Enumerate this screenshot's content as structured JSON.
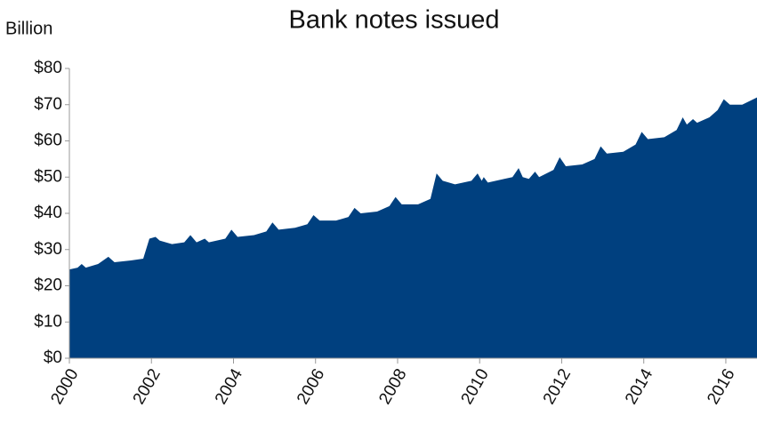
{
  "chart_data": {
    "type": "area",
    "title": "Bank notes issued",
    "y_label": "Billion",
    "color": "#00407f",
    "x": [
      2000.0,
      2000.2,
      2000.3,
      2000.4,
      2000.7,
      2000.95,
      2001.1,
      2001.5,
      2001.8,
      2001.95,
      2002.1,
      2002.2,
      2002.5,
      2002.8,
      2002.95,
      2003.1,
      2003.3,
      2003.4,
      2003.8,
      2003.95,
      2004.1,
      2004.5,
      2004.8,
      2004.95,
      2005.1,
      2005.5,
      2005.8,
      2005.95,
      2006.1,
      2006.5,
      2006.8,
      2006.95,
      2007.1,
      2007.5,
      2007.8,
      2007.95,
      2008.1,
      2008.5,
      2008.8,
      2008.95,
      2009.1,
      2009.4,
      2009.8,
      2009.95,
      2010.05,
      2010.1,
      2010.2,
      2010.6,
      2010.8,
      2010.95,
      2011.05,
      2011.2,
      2011.35,
      2011.45,
      2011.8,
      2011.95,
      2012.1,
      2012.5,
      2012.8,
      2012.95,
      2013.1,
      2013.5,
      2013.8,
      2013.95,
      2014.1,
      2014.5,
      2014.8,
      2014.95,
      2015.05,
      2015.2,
      2015.3,
      2015.6,
      2015.8,
      2015.95,
      2016.1,
      2016.4,
      2016.76
    ],
    "values": [
      24.5,
      25,
      26,
      25,
      26,
      28,
      26.5,
      27,
      27.5,
      33,
      33.5,
      32.5,
      31.5,
      32,
      34,
      32,
      33,
      32,
      33,
      35.5,
      33.5,
      34,
      35,
      37.5,
      35.5,
      36,
      37,
      39.5,
      38,
      38,
      39,
      41.5,
      40,
      40.5,
      42,
      44.5,
      42.5,
      42.5,
      44,
      51,
      49,
      48,
      49,
      51,
      49,
      50,
      48.5,
      49.5,
      50,
      52.5,
      50,
      49.5,
      51.5,
      50,
      52,
      55.5,
      53,
      53.5,
      55,
      58.5,
      56.5,
      57,
      59,
      62.5,
      60.5,
      61,
      63,
      66.5,
      64.5,
      66,
      65,
      66.5,
      68.5,
      71.5,
      70,
      70,
      72
    ],
    "xlim": [
      2000,
      2016.76
    ],
    "xticks": [
      2000,
      2002,
      2004,
      2006,
      2008,
      2010,
      2012,
      2014,
      2016
    ],
    "ylim": [
      0,
      80
    ],
    "yticks": [
      {
        "value": 0,
        "label": "$0"
      },
      {
        "value": 10,
        "label": "$10"
      },
      {
        "value": 20,
        "label": "$20"
      },
      {
        "value": 30,
        "label": "$30"
      },
      {
        "value": 40,
        "label": "$40"
      },
      {
        "value": 50,
        "label": "$50"
      },
      {
        "value": 60,
        "label": "$60"
      },
      {
        "value": 70,
        "label": "$70"
      },
      {
        "value": 80,
        "label": "$80"
      }
    ],
    "grid": false
  }
}
